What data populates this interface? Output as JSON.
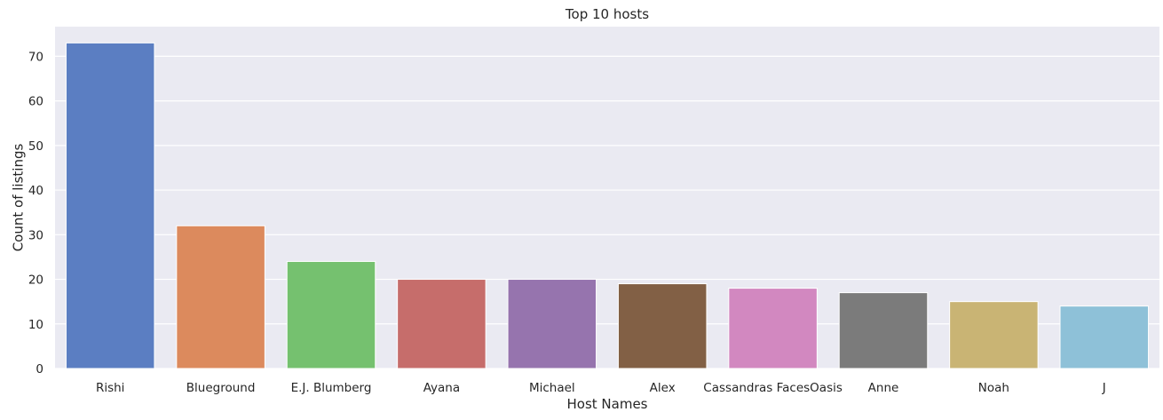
{
  "chart_data": {
    "type": "bar",
    "title": "Top 10 hosts",
    "xlabel": "Host Names",
    "ylabel": "Count of listings",
    "categories": [
      "Rishi",
      "Blueground",
      "E.J. Blumberg",
      "Ayana",
      "Michael",
      "Alex",
      "Cassandras FacesOasis",
      "Anne",
      "Noah",
      "J"
    ],
    "values": [
      73,
      32,
      24,
      20,
      20,
      19,
      18,
      17,
      15,
      14
    ],
    "colors": [
      "#5b7ec2",
      "#dc8a5d",
      "#75c16f",
      "#c66d6b",
      "#9674ae",
      "#826045",
      "#d288c0",
      "#7b7b7b",
      "#c9b474",
      "#8ec1d8"
    ],
    "ylim": [
      0,
      76.65
    ],
    "yticks": [
      0,
      10,
      20,
      30,
      40,
      50,
      60,
      70
    ],
    "grid": true,
    "background": "#eaeaf2",
    "gridColor": "#ffffff"
  }
}
